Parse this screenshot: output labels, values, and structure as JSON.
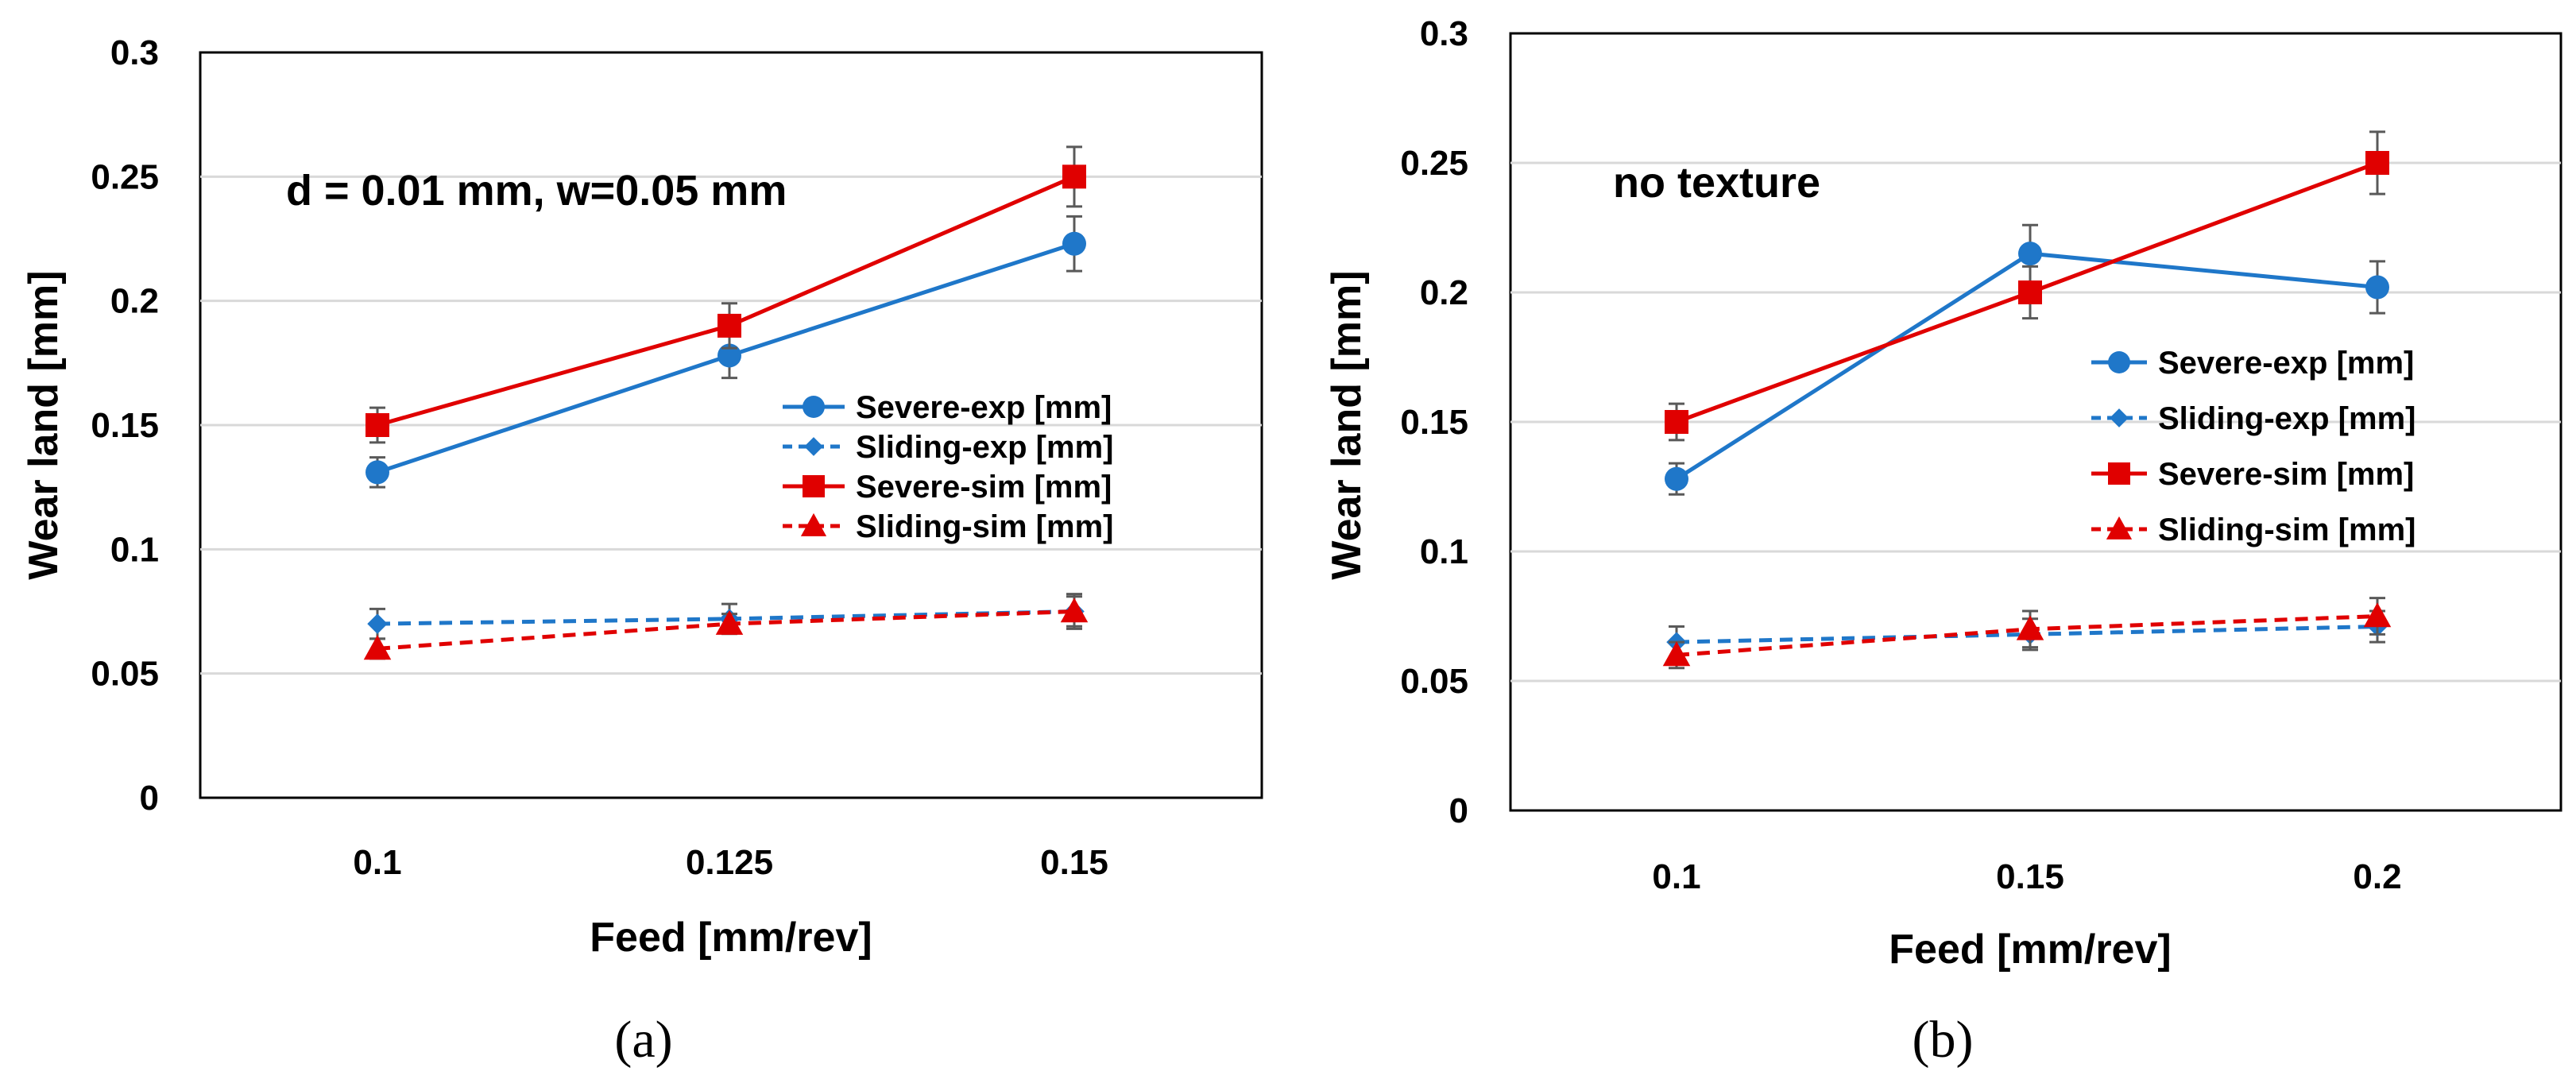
{
  "colors": {
    "blue": "#1f77c9",
    "red": "#e00000",
    "grid": "#d9d9d9",
    "errorbar": "#595959"
  },
  "chart_data": [
    {
      "type": "line",
      "panel_label": "(a)",
      "annotation": "d = 0.01 mm, w=0.05 mm",
      "xlabel": "Feed [mm/rev]",
      "ylabel": "Wear land [mm]",
      "categories": [
        "0.1",
        "0.125",
        "0.15"
      ],
      "ylim": [
        0,
        0.3
      ],
      "yticks": [
        0,
        0.05,
        0.1,
        0.15,
        0.2,
        0.25,
        0.3
      ],
      "ytick_labels": [
        "0",
        "0.05",
        "0.1",
        "0.15",
        "0.2",
        "0.25",
        "0.3"
      ],
      "grid": true,
      "legend_position": "right",
      "series": [
        {
          "name": "Severe-exp [mm]",
          "values": [
            0.131,
            0.178,
            0.223
          ],
          "errors": [
            0.006,
            0.009,
            0.011
          ],
          "color": "#1f77c9",
          "marker": "circle",
          "dash": "solid"
        },
        {
          "name": "Sliding-exp [mm]",
          "values": [
            0.07,
            0.072,
            0.075
          ],
          "errors": [
            0.006,
            0.006,
            0.006
          ],
          "color": "#1f77c9",
          "marker": "diamond",
          "dash": "dashed"
        },
        {
          "name": "Severe-sim [mm]",
          "values": [
            0.15,
            0.19,
            0.25
          ],
          "errors": [
            0.007,
            0.009,
            0.012
          ],
          "color": "#e00000",
          "marker": "square",
          "dash": "solid"
        },
        {
          "name": "Sliding-sim [mm]",
          "values": [
            0.06,
            0.07,
            0.075
          ],
          "errors": [
            0.004,
            0.004,
            0.007
          ],
          "color": "#e00000",
          "marker": "triangle",
          "dash": "dashed"
        }
      ]
    },
    {
      "type": "line",
      "panel_label": "(b)",
      "annotation": "no texture",
      "xlabel": "Feed [mm/rev]",
      "ylabel": "Wear land [mm]",
      "categories": [
        "0.1",
        "0.15",
        "0.2"
      ],
      "ylim": [
        0,
        0.3
      ],
      "yticks": [
        0,
        0.05,
        0.1,
        0.15,
        0.2,
        0.25,
        0.3
      ],
      "ytick_labels": [
        "0",
        "0.05",
        "0.1",
        "0.15",
        "0.2",
        "0.25",
        "0.3"
      ],
      "grid": true,
      "legend_position": "right",
      "series": [
        {
          "name": "Severe-exp [mm]",
          "values": [
            0.128,
            0.215,
            0.202
          ],
          "errors": [
            0.006,
            0.011,
            0.01
          ],
          "color": "#1f77c9",
          "marker": "circle",
          "dash": "solid"
        },
        {
          "name": "Sliding-exp [mm]",
          "values": [
            0.065,
            0.068,
            0.071
          ],
          "errors": [
            0.006,
            0.006,
            0.006
          ],
          "color": "#1f77c9",
          "marker": "diamond",
          "dash": "dashed"
        },
        {
          "name": "Severe-sim [mm]",
          "values": [
            0.15,
            0.2,
            0.25
          ],
          "errors": [
            0.007,
            0.01,
            0.012
          ],
          "color": "#e00000",
          "marker": "square",
          "dash": "solid"
        },
        {
          "name": "Sliding-sim [mm]",
          "values": [
            0.06,
            0.07,
            0.075
          ],
          "errors": [
            0.005,
            0.007,
            0.007
          ],
          "color": "#e00000",
          "marker": "triangle",
          "dash": "dashed"
        }
      ]
    }
  ]
}
